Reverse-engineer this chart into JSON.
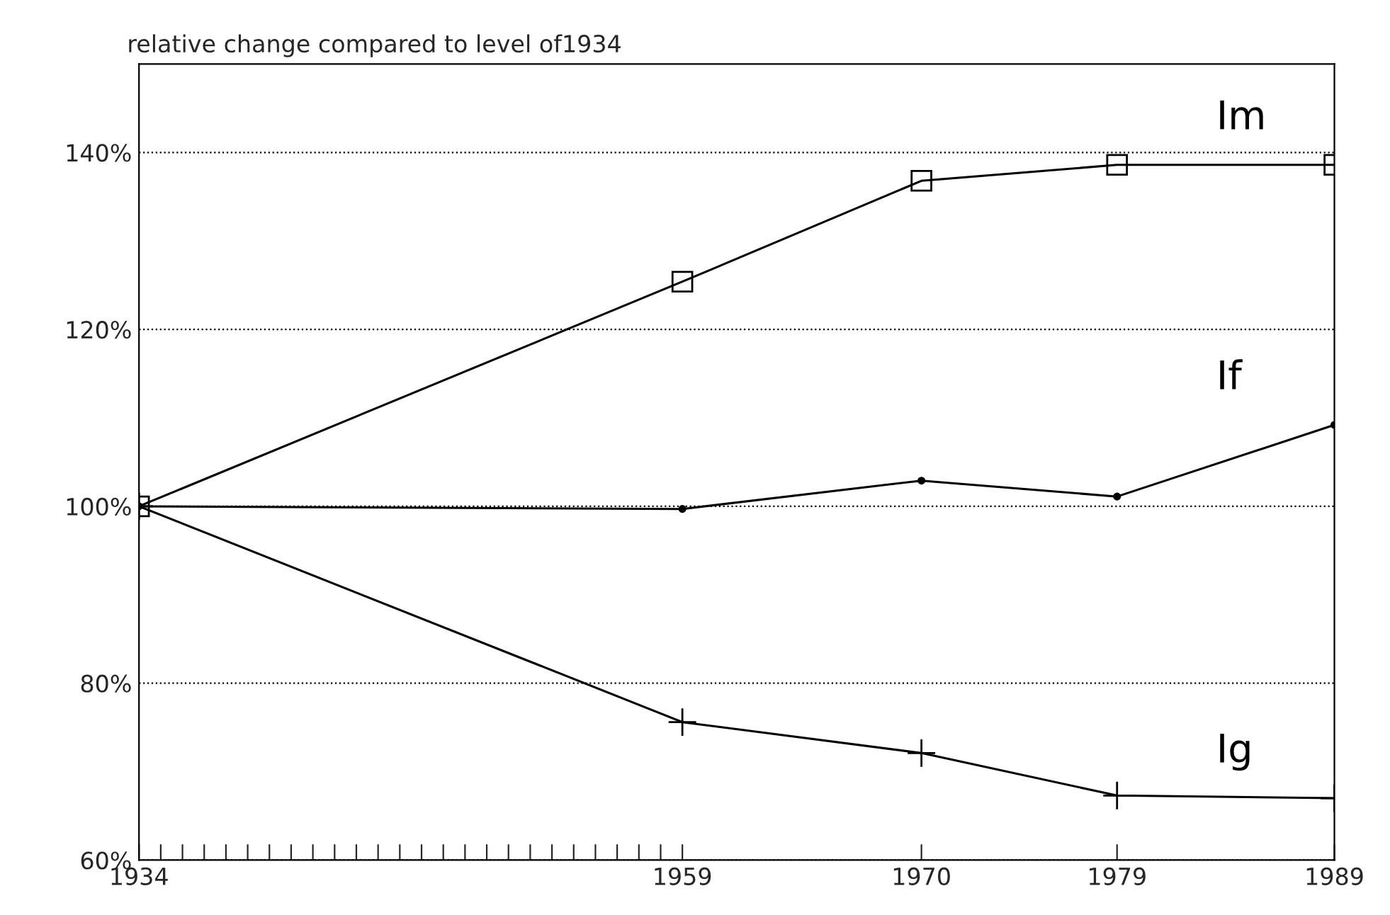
{
  "chart_data": {
    "type": "line",
    "title": "relative change compared to level of1934",
    "x": [
      1934,
      1959,
      1970,
      1979,
      1989
    ],
    "series": [
      {
        "name": "Im",
        "color": "#000000",
        "marker": "square",
        "values": [
          100,
          125.4,
          136.8,
          138.6,
          138.6
        ]
      },
      {
        "name": "If",
        "color": "#000000",
        "marker": "circle",
        "values": [
          100,
          99.7,
          102.9,
          101.1,
          109.2
        ]
      },
      {
        "name": "Ig",
        "color": "#000000",
        "marker": "cross",
        "values": [
          100,
          75.6,
          72.1,
          67.3,
          67.0
        ]
      }
    ],
    "xlim": [
      1934,
      1989
    ],
    "xticks": [
      1934,
      {
        "value": 1935,
        "label": null
      },
      {
        "value": 1936,
        "label": null
      },
      {
        "value": 1937,
        "label": null
      },
      {
        "value": 1938,
        "label": null
      },
      {
        "value": 1939,
        "label": null
      },
      {
        "value": 1940,
        "label": null
      },
      {
        "value": 1941,
        "label": null
      },
      {
        "value": 1942,
        "label": null
      },
      {
        "value": 1943,
        "label": null
      },
      {
        "value": 1944,
        "label": null
      },
      {
        "value": 1945,
        "label": null
      },
      {
        "value": 1946,
        "label": null
      },
      {
        "value": 1947,
        "label": null
      },
      {
        "value": 1948,
        "label": null
      },
      {
        "value": 1949,
        "label": null
      },
      {
        "value": 1950,
        "label": null
      },
      {
        "value": 1951,
        "label": null
      },
      {
        "value": 1952,
        "label": null
      },
      {
        "value": 1953,
        "label": null
      },
      {
        "value": 1954,
        "label": null
      },
      {
        "value": 1955,
        "label": null
      },
      {
        "value": 1956,
        "label": null
      },
      {
        "value": 1957,
        "label": null
      },
      {
        "value": 1958,
        "label": null
      },
      1959,
      1970,
      1979,
      1989
    ],
    "ylim": [
      60,
      150
    ],
    "yticks": [
      {
        "value": 60,
        "label": "60%"
      },
      {
        "value": 80,
        "label": "80%"
      },
      {
        "value": 100,
        "label": "100%"
      },
      {
        "value": 120,
        "label": "120%"
      },
      {
        "value": 140,
        "label": "140%"
      }
    ],
    "grid": "y",
    "line_style": "solid"
  }
}
